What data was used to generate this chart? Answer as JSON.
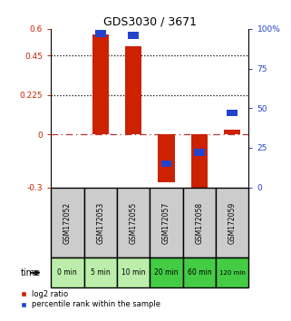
{
  "title": "GDS3030 / 3671",
  "samples": [
    "GSM172052",
    "GSM172053",
    "GSM172055",
    "GSM172057",
    "GSM172058",
    "GSM172059"
  ],
  "time_labels": [
    "0 min",
    "5 min",
    "10 min",
    "20 min",
    "60 min",
    "120 min"
  ],
  "log2_ratio": [
    0.0,
    0.57,
    0.5,
    -0.27,
    -0.32,
    0.03
  ],
  "percentile_rank": [
    null,
    97,
    96,
    15,
    22,
    47
  ],
  "ylim_left": [
    -0.3,
    0.6
  ],
  "ylim_right": [
    0,
    100
  ],
  "yticks_left": [
    -0.3,
    0,
    0.225,
    0.45,
    0.6
  ],
  "yticks_right": [
    0,
    25,
    50,
    75,
    100
  ],
  "ytick_labels_left": [
    "-0.3",
    "0",
    "0.225",
    "0.45",
    "0.6"
  ],
  "ytick_labels_right": [
    "0",
    "25",
    "50",
    "75",
    "100%"
  ],
  "hlines_dotted": [
    0.45,
    0.225
  ],
  "hline_dashed": 0,
  "bar_color_red": "#cc2200",
  "bar_color_blue": "#2244cc",
  "bar_width": 0.5,
  "bg_color_samples": "#cccccc",
  "bg_color_time_light": "#bbeeaa",
  "bg_color_time_dark": "#44cc44",
  "time_dark_indices": [
    3,
    4,
    5
  ],
  "legend_red": "log2 ratio",
  "legend_blue": "percentile rank within the sample"
}
